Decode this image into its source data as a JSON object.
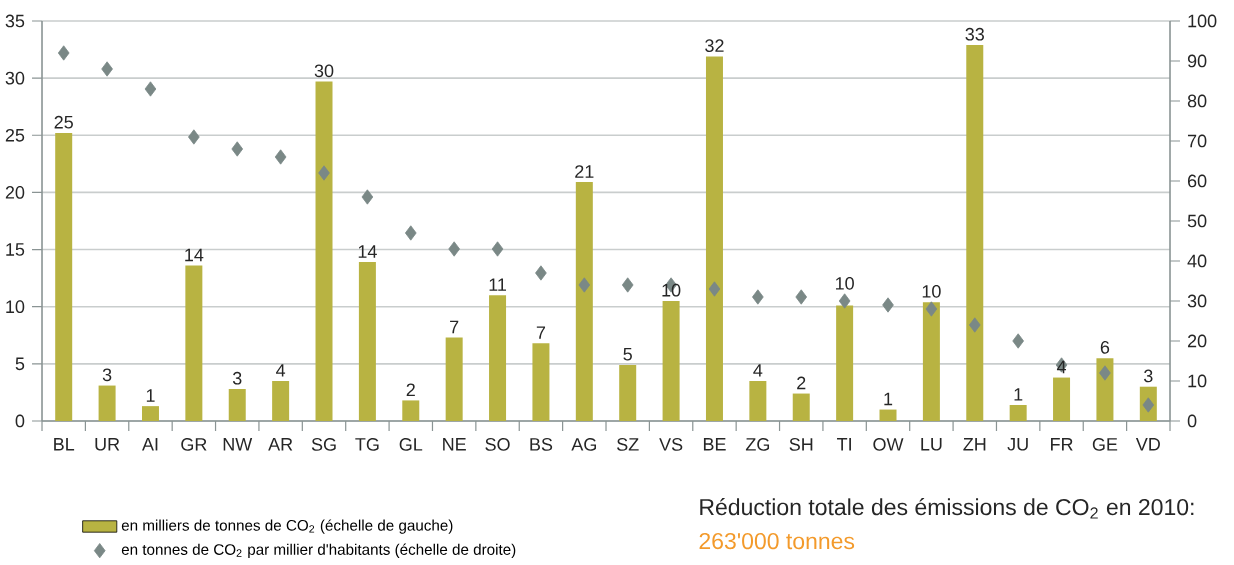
{
  "chart_data": {
    "type": "bar",
    "categories": [
      "BL",
      "UR",
      "AI",
      "GR",
      "NW",
      "AR",
      "SG",
      "TG",
      "GL",
      "NE",
      "SO",
      "BS",
      "AG",
      "SZ",
      "VS",
      "BE",
      "ZG",
      "SH",
      "TI",
      "OW",
      "LU",
      "ZH",
      "JU",
      "FR",
      "GE",
      "VD"
    ],
    "series": [
      {
        "name": "en milliers de tonnes de CO$_{2}$ (échelle de gauche)",
        "color": "#b8b342",
        "values": [
          25.2,
          3.1,
          1.3,
          13.6,
          2.8,
          3.5,
          29.7,
          13.9,
          1.8,
          7.3,
          11.0,
          6.8,
          20.9,
          4.9,
          10.5,
          31.9,
          3.5,
          2.4,
          10.1,
          1.0,
          10.4,
          32.9,
          1.4,
          3.8,
          5.5,
          3.0
        ],
        "value_labels": [
          "25",
          "3",
          "1",
          "14",
          "3",
          "4",
          "30",
          "14",
          "2",
          "7",
          "11",
          "7",
          "21",
          "5",
          "10",
          "32",
          "4",
          "2",
          "10",
          "1",
          "10",
          "33",
          "1",
          "4",
          "6",
          "3"
        ]
      },
      {
        "name": "en tonnes de CO$_{2}$ par millier d'habitants (échelle de droite)",
        "type": "scatter",
        "axis": "y2",
        "color": "#7a8886",
        "values": [
          92,
          88,
          83,
          71,
          68,
          66,
          62,
          56,
          47,
          43,
          43,
          37,
          34,
          34,
          34,
          33,
          31,
          31,
          30,
          29,
          28,
          24,
          20,
          14,
          12,
          4
        ]
      }
    ],
    "ylim": [
      0,
      35
    ],
    "yticks": [
      0,
      5,
      10,
      15,
      20,
      25,
      30,
      35
    ],
    "y2lim": [
      0,
      100
    ],
    "y2ticks": [
      0,
      10,
      20,
      30,
      40,
      50,
      60,
      70,
      80,
      90,
      100
    ],
    "grid": "y",
    "legend": "bottom left",
    "marker": "diamond",
    "annotations": [
      "Réduction totale des émissions de CO$_{2}$ en 2010:",
      "263'000 tonnes"
    ]
  }
}
